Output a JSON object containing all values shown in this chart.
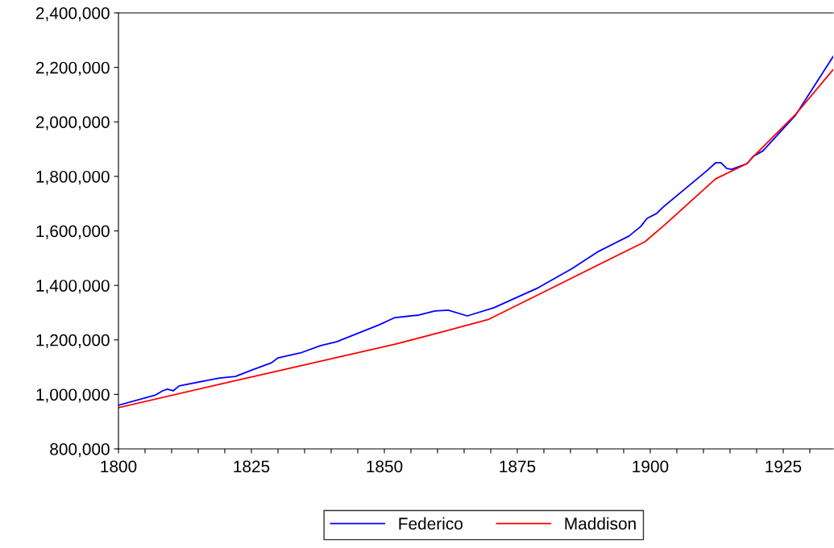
{
  "chart_data": {
    "type": "line",
    "series": [
      {
        "name": "Federico",
        "color": "#0000ff",
        "x": [
          1800,
          1807,
          1808.3,
          1809.2,
          1810.3,
          1811.4,
          1819,
          1822,
          1825.2,
          1828.8,
          1830,
          1834.2,
          1838,
          1841,
          1849,
          1852,
          1856.5,
          1859.5,
          1862,
          1865.6,
          1870.6,
          1879,
          1885.3,
          1890.3,
          1896,
          1898.2,
          1899.4,
          1901.2,
          1902.4,
          1910.6,
          1912.3,
          1913.3,
          1914.4,
          1915.3,
          1918.2,
          1919.4,
          1921.2,
          1927.3,
          1934.4
        ],
        "values": [
          960000,
          998000,
          1013000,
          1019000,
          1013000,
          1031000,
          1060000,
          1066000,
          1090000,
          1116000,
          1134000,
          1152000,
          1179000,
          1193000,
          1255000,
          1282000,
          1291000,
          1306000,
          1309000,
          1288000,
          1318000,
          1392000,
          1462000,
          1525000,
          1581000,
          1616000,
          1646000,
          1664000,
          1687000,
          1820000,
          1850000,
          1850000,
          1829000,
          1826000,
          1847000,
          1874000,
          1894000,
          2024000,
          2240000
        ]
      },
      {
        "name": "Maddison",
        "color": "#ff0000",
        "x": [
          1800,
          1819,
          1852,
          1862,
          1869.7,
          1899,
          1902.7,
          1912.3,
          1918.2,
          1919,
          1927.3,
          1934.4
        ],
        "values": [
          951000,
          1037000,
          1184000,
          1235000,
          1276000,
          1560000,
          1622000,
          1791000,
          1847000,
          1865000,
          2027000,
          2192000
        ]
      }
    ],
    "xlim": [
      1800,
      1934.4
    ],
    "xticks": [
      1800,
      {
        "value": 1805,
        "label": null
      },
      {
        "value": 1810,
        "label": null
      },
      {
        "value": 1815,
        "label": null
      },
      {
        "value": 1820,
        "label": null
      },
      1825,
      {
        "value": 1830,
        "label": null
      },
      {
        "value": 1835,
        "label": null
      },
      {
        "value": 1840,
        "label": null
      },
      {
        "value": 1845,
        "label": null
      },
      1850,
      {
        "value": 1855,
        "label": null
      },
      {
        "value": 1860,
        "label": null
      },
      {
        "value": 1865,
        "label": null
      },
      {
        "value": 1870,
        "label": null
      },
      1875,
      {
        "value": 1880,
        "label": null
      },
      {
        "value": 1885,
        "label": null
      },
      {
        "value": 1890,
        "label": null
      },
      {
        "value": 1895,
        "label": null
      },
      1900,
      {
        "value": 1905,
        "label": null
      },
      {
        "value": 1910,
        "label": null
      },
      {
        "value": 1915,
        "label": null
      },
      {
        "value": 1920,
        "label": null
      },
      1925,
      {
        "value": 1930,
        "label": null
      }
    ],
    "ylim": [
      800000,
      2400000
    ],
    "yticks": [
      {
        "value": 800000,
        "label": "800,000"
      },
      {
        "value": 1000000,
        "label": "1,000,000"
      },
      {
        "value": 1200000,
        "label": "1,200,000"
      },
      {
        "value": 1400000,
        "label": "1,400,000"
      },
      {
        "value": 1600000,
        "label": "1,600,000"
      },
      {
        "value": 1800000,
        "label": "1,800,000"
      },
      {
        "value": 2000000,
        "label": "2,000,000"
      },
      {
        "value": 2200000,
        "label": "2,200,000"
      },
      {
        "value": 2400000,
        "label": "2,400,000"
      }
    ],
    "legend": "bottom",
    "grid": false,
    "line_style": "solid"
  }
}
